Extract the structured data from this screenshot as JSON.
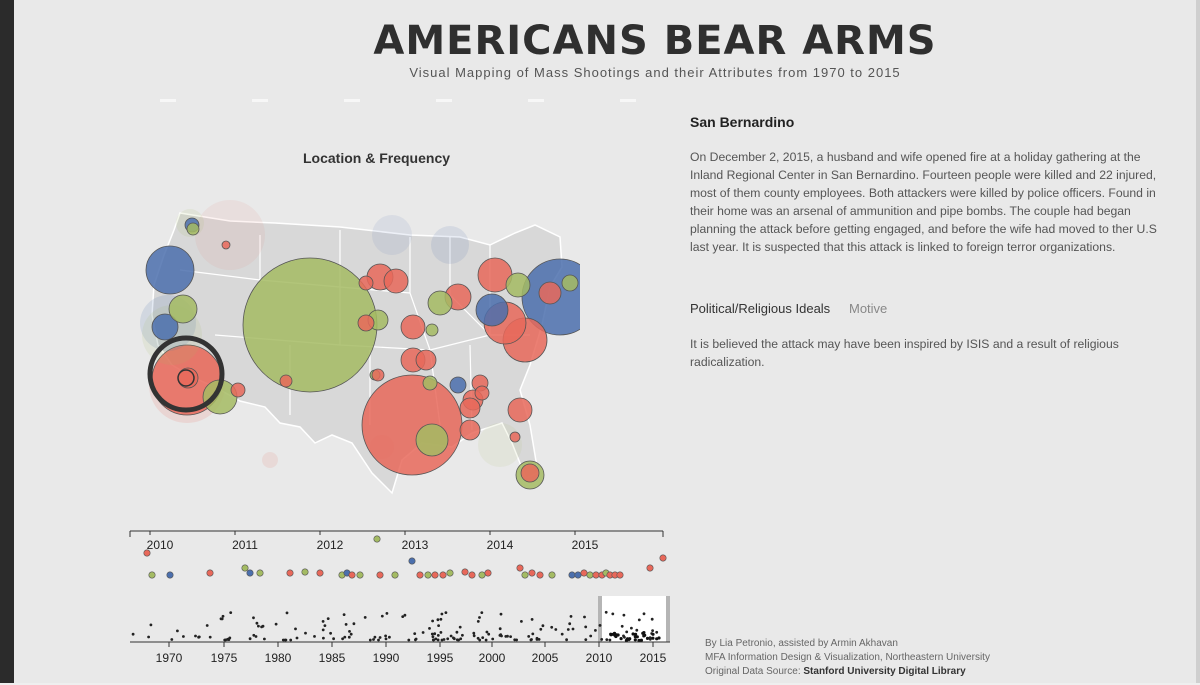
{
  "header": {
    "title": "AMERICANS BEAR ARMS",
    "subtitle": "Visual Mapping of Mass Shootings and their Attributes from 1970 to 2015"
  },
  "map": {
    "title": "Location & Frequency",
    "colors": {
      "red": "#e8685a",
      "green": "#a4bb63",
      "blue": "#4b6fad",
      "land": "#d6d6d6",
      "border": "#ffffff"
    }
  },
  "detail": {
    "title": "San Bernardino",
    "description": "On December 2, 2015, a husband and wife opened fire at a holiday gathering at the Inland Regional Center in San Bernardino. Fourteen people were killed and 22 injured, most of them county employees. Both attackers were killed by police officers. Found in their home was an arsenal of ammunition and pipe bombs. The couple had began planning the attack before getting engaged, and before the wife had moved to ther U.S last year. It is suspected that this attack is linked to foreign terror organizations.",
    "ideals_label": "Political/Religious Ideals",
    "motive_label": "Motive",
    "motive_description": "It is believed the attack may have been inspired by ISIS and a result of religious radicalization."
  },
  "timeline": {
    "top_years": [
      "2010",
      "2011",
      "2012",
      "2013",
      "2014",
      "2015"
    ],
    "bottom_years": [
      "1970",
      "1975",
      "1980",
      "1985",
      "1990",
      "1995",
      "2000",
      "2005",
      "2010",
      "2015"
    ],
    "brush_range": [
      2010,
      2015
    ]
  },
  "credits": {
    "line1": "By Lia Petronio, assisted by Armin Akhavan",
    "line2": "MFA Information Design & Visualization, Northeastern University",
    "line3_prefix": "Original Data Source: ",
    "line3_source": "Stanford University Digital Library"
  }
}
